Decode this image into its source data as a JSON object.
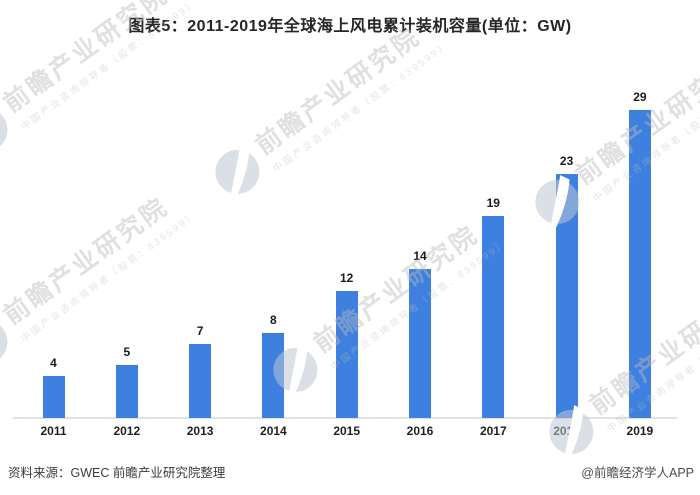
{
  "page_title": "图表5：2011-2019年全球海上风电累计装机容量(单位：GW)",
  "chart_data": {
    "type": "bar",
    "title": "图表5：2011-2019年全球海上风电累计装机容量(单位：GW)",
    "categories": [
      "2011",
      "2012",
      "2013",
      "2014",
      "2015",
      "2016",
      "2017",
      "2018",
      "2019"
    ],
    "values": [
      4,
      5,
      7,
      8,
      12,
      14,
      19,
      23,
      29
    ],
    "xlabel": "",
    "ylabel": "",
    "unit": "GW",
    "ylim": [
      0,
      30
    ],
    "grid": "off",
    "legend": "none",
    "bar_color": "#3e80df",
    "value_labels": "above-bars"
  },
  "footer": {
    "source": "资料来源：GWEC 前瞻产业研究院整理",
    "credit": "@前瞻经济学人APP"
  },
  "watermark": {
    "text": "前瞻产业研究院",
    "subtext": "中国产业咨询领导者（股票：839599）",
    "logo": "qianzhan-logo"
  },
  "colors": {
    "bar": "#3e80df",
    "title_text": "#262626",
    "axis_line": "#e2e2e2",
    "label_text": "#1a1a1a",
    "footer_text": "#3c3c3c",
    "background": "#ffffff"
  }
}
